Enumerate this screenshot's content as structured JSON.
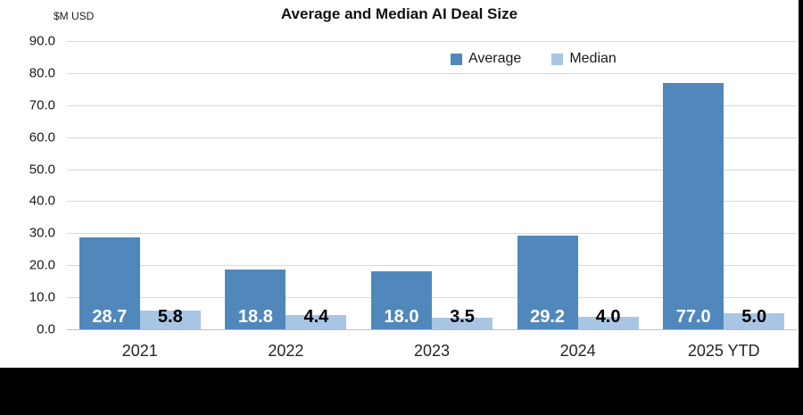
{
  "header": {
    "title": "Average and Median AI Deal Size",
    "unit_label": "$M USD"
  },
  "chart_data": {
    "type": "bar",
    "title": "Average and Median AI Deal Size",
    "unit_label": "$M USD",
    "categories": [
      "2021",
      "2022",
      "2023",
      "2024",
      "2025 YTD"
    ],
    "series": [
      {
        "name": "Average",
        "color": "#5188BC",
        "label_color": "#ffffff",
        "values": [
          28.7,
          18.8,
          18.0,
          29.2,
          77.0
        ]
      },
      {
        "name": "Median",
        "color": "#A8C6E4",
        "label_color": "#000000",
        "values": [
          5.8,
          4.4,
          3.5,
          4.0,
          5.0
        ]
      }
    ],
    "ylim": [
      0,
      90
    ],
    "ytick_step": 10,
    "ytick_decimals": 1,
    "data_label_decimals": 1,
    "grid": true,
    "legend_position": "top-inside",
    "gridline_color": "#d9d9d9",
    "axis_line_color": "#bfbfbf",
    "background_color": "#ffffff",
    "frame_color": "#000000"
  }
}
